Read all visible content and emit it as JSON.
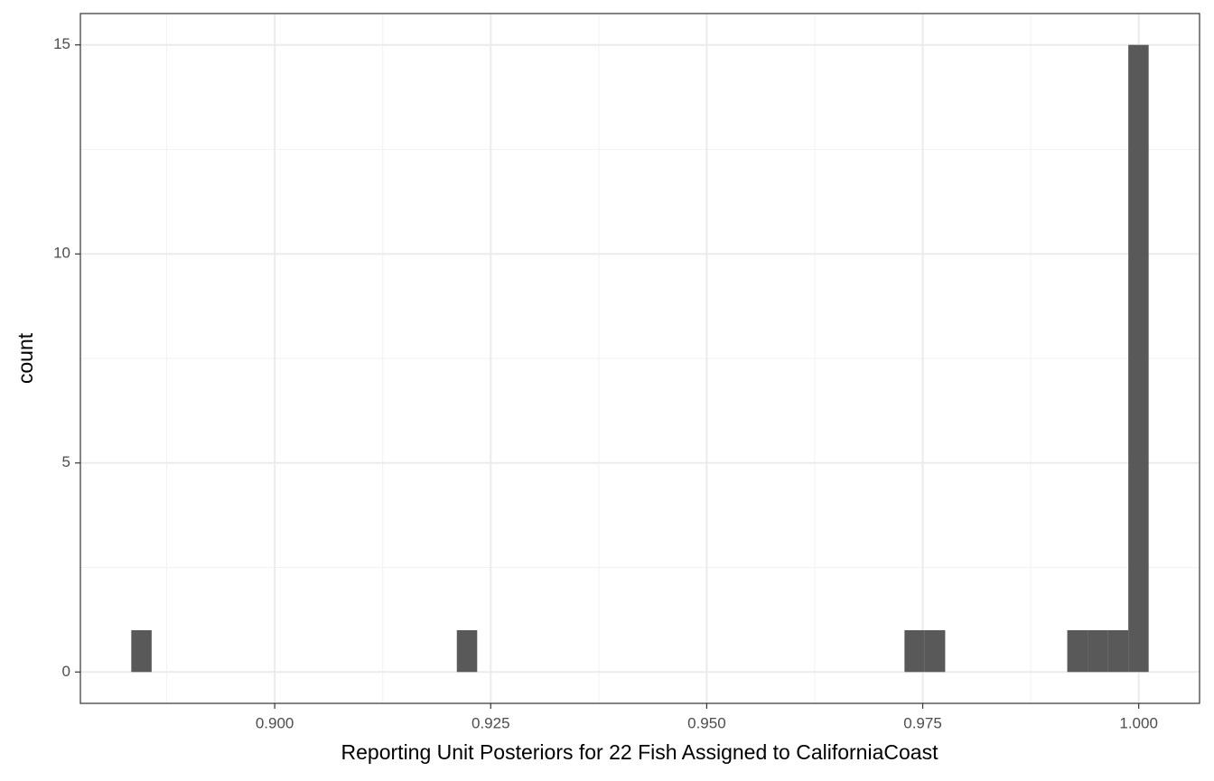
{
  "chart_data": {
    "type": "histogram",
    "x_label": "Reporting Unit Posteriors for 22 Fish Assigned to CaliforniaCoast",
    "y_label": "count",
    "bins": [
      0.8834,
      0.885755,
      0.88811,
      0.890465,
      0.89282,
      0.895175,
      0.89753,
      0.899885,
      0.90224,
      0.904595,
      0.90695,
      0.909305,
      0.91166,
      0.914015,
      0.91637,
      0.918725,
      0.92108,
      0.923435,
      0.92579,
      0.928145,
      0.9305,
      0.932855,
      0.93521,
      0.937565,
      0.93992,
      0.942275,
      0.94463,
      0.946985,
      0.94934,
      0.951695,
      0.95405,
      0.956405,
      0.95876,
      0.961115,
      0.96347,
      0.965825,
      0.96818,
      0.970535,
      0.97289,
      0.975245,
      0.9776,
      0.979955,
      0.98231,
      0.984665,
      0.98702,
      0.989375,
      0.99173,
      0.994085,
      0.99644,
      0.998795,
      1.00115
    ],
    "values": [
      1,
      0,
      0,
      0,
      0,
      0,
      0,
      0,
      0,
      0,
      0,
      0,
      0,
      0,
      0,
      0,
      1,
      0,
      0,
      0,
      0,
      0,
      0,
      0,
      0,
      0,
      0,
      0,
      0,
      0,
      0,
      0,
      0,
      0,
      0,
      0,
      0,
      0,
      1,
      1,
      0,
      0,
      0,
      0,
      0,
      0,
      1,
      1,
      1,
      15
    ],
    "color": "#595959",
    "xlim": [
      0.87751,
      1.00704
    ],
    "ylim": [
      -0.75,
      15.75
    ],
    "xticks": [
      {
        "value": 0.9,
        "label": "0.900"
      },
      {
        "value": 0.925,
        "label": "0.925"
      },
      {
        "value": 0.95,
        "label": "0.950"
      },
      {
        "value": 0.975,
        "label": "0.975"
      },
      {
        "value": 1.0,
        "label": "1.000"
      }
    ],
    "yticks": [
      0,
      5,
      10,
      15
    ],
    "x_minor_grid": [
      0.8875,
      0.9125,
      0.9375,
      0.9625,
      0.9875
    ],
    "y_minor_grid": [
      2.5,
      7.5,
      12.5
    ],
    "grid": true
  }
}
